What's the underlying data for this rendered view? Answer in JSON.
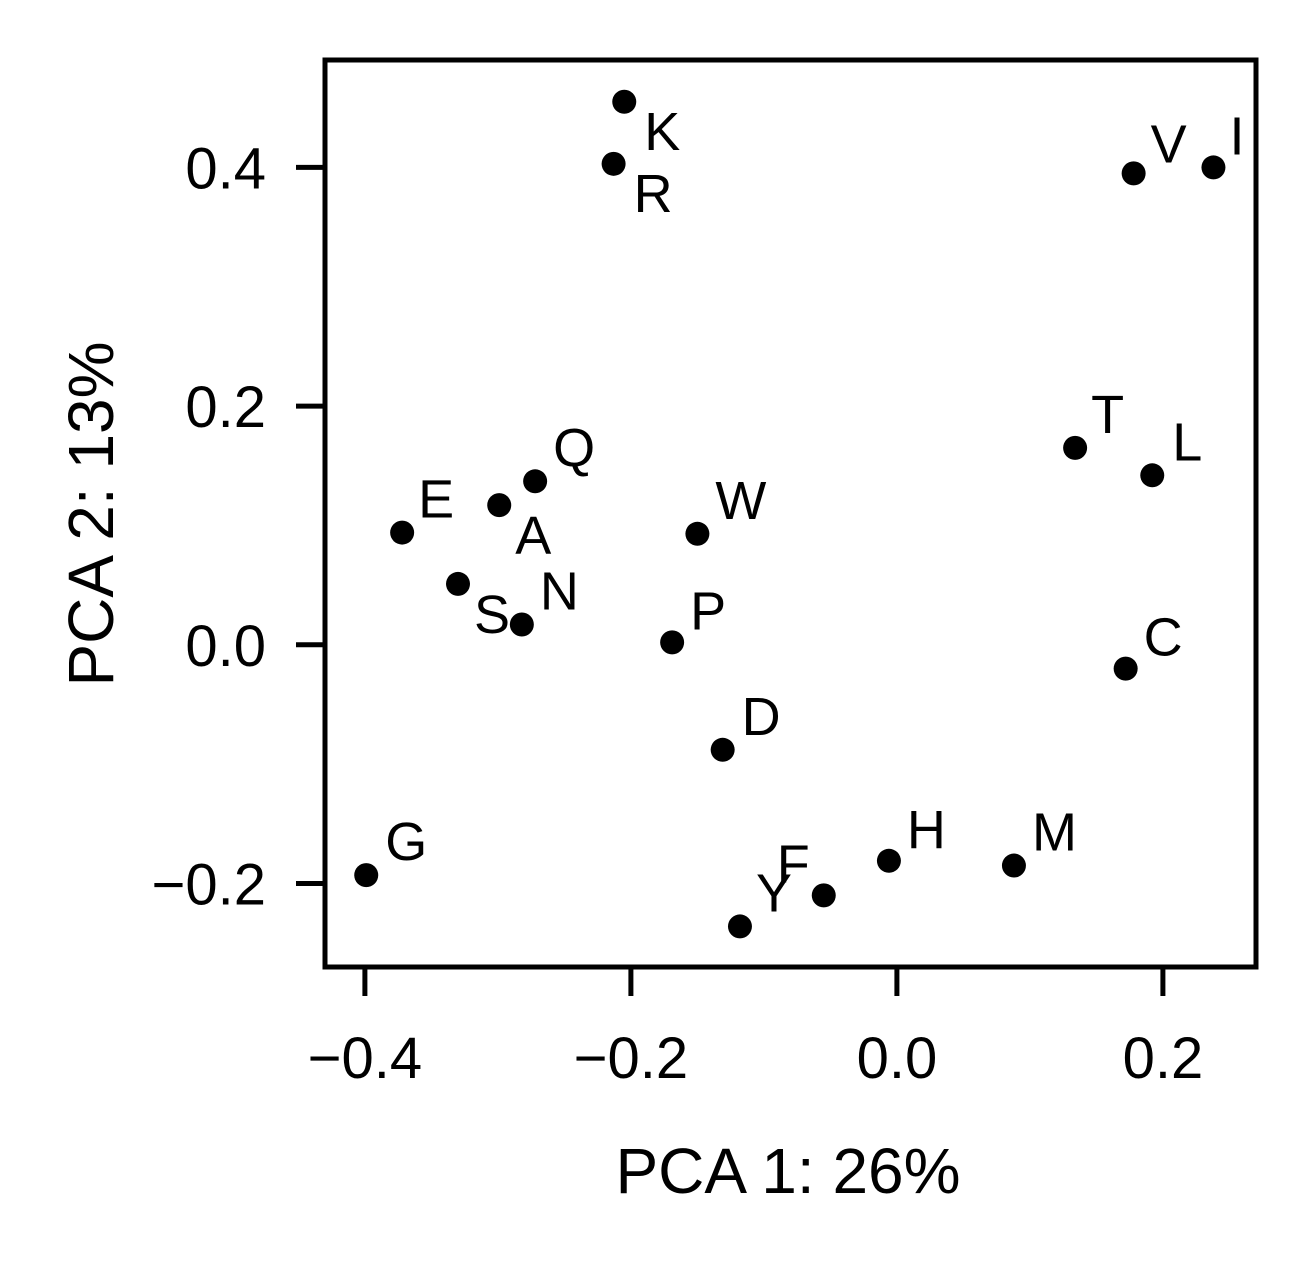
{
  "chart_data": {
    "type": "scatter",
    "xlabel": "PCA 1: 26%",
    "ylabel": "PCA 2: 13%",
    "xlim": [
      -0.43,
      0.27
    ],
    "ylim": [
      -0.27,
      0.49
    ],
    "x_ticks": [
      -0.4,
      -0.2,
      0.0,
      0.2
    ],
    "x_tick_labels": [
      "−0.4",
      "−0.2",
      "0.0",
      "0.2"
    ],
    "y_ticks": [
      -0.2,
      0.0,
      0.2,
      0.4
    ],
    "y_tick_labels": [
      "−0.2",
      "0.0",
      "0.2",
      "0.4"
    ],
    "grid": false,
    "point_color": "#000000",
    "points": [
      {
        "label": "K",
        "x": -0.205,
        "y": 0.455
      },
      {
        "label": "R",
        "x": -0.213,
        "y": 0.403
      },
      {
        "label": "V",
        "x": 0.178,
        "y": 0.395
      },
      {
        "label": "I",
        "x": 0.238,
        "y": 0.4
      },
      {
        "label": "T",
        "x": 0.134,
        "y": 0.165
      },
      {
        "label": "L",
        "x": 0.192,
        "y": 0.142
      },
      {
        "label": "Q",
        "x": -0.272,
        "y": 0.137
      },
      {
        "label": "E",
        "x": -0.372,
        "y": 0.094
      },
      {
        "label": "A",
        "x": -0.299,
        "y": 0.117
      },
      {
        "label": "W",
        "x": -0.15,
        "y": 0.093
      },
      {
        "label": "S",
        "x": -0.33,
        "y": 0.051
      },
      {
        "label": "N",
        "x": -0.282,
        "y": 0.017
      },
      {
        "label": "P",
        "x": -0.169,
        "y": 0.002
      },
      {
        "label": "C",
        "x": 0.172,
        "y": -0.02
      },
      {
        "label": "D",
        "x": -0.131,
        "y": -0.088
      },
      {
        "label": "G",
        "x": -0.399,
        "y": -0.193
      },
      {
        "label": "H",
        "x": -0.006,
        "y": -0.181
      },
      {
        "label": "M",
        "x": 0.088,
        "y": -0.185
      },
      {
        "label": "F",
        "x": -0.055,
        "y": -0.21
      },
      {
        "label": "Y",
        "x": -0.118,
        "y": -0.236
      }
    ]
  }
}
